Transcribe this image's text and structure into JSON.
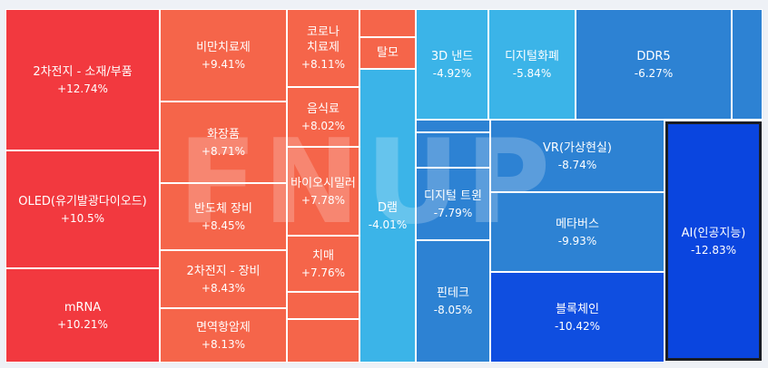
{
  "chart_data": {
    "type": "treemap",
    "colors": {
      "up_strong": "#f2393f",
      "up": "#f5654a",
      "down_light": "#3bb4e8",
      "down_mid": "#2d82d3",
      "down_strong": "#0f4ee0",
      "down_max": "#0a45df",
      "border": "#ffffff",
      "selected_border": "#1a1d24"
    },
    "items": [
      {
        "name": "2차전지 - 소재/부품",
        "change": "+12.74%",
        "value": 12.74
      },
      {
        "name": "OLED(유기발광다이오드)",
        "change": "+10.5%",
        "value": 10.5
      },
      {
        "name": "mRNA",
        "change": "+10.21%",
        "value": 10.21
      },
      {
        "name": "비만치료제",
        "change": "+9.41%",
        "value": 9.41
      },
      {
        "name": "화장품",
        "change": "+8.71%",
        "value": 8.71
      },
      {
        "name": "반도체 장비",
        "change": "+8.45%",
        "value": 8.45
      },
      {
        "name": "2차전지 - 장비",
        "change": "+8.43%",
        "value": 8.43
      },
      {
        "name": "면역항암제",
        "change": "+8.13%",
        "value": 8.13
      },
      {
        "name": "코로나 치료제",
        "change": "+8.11%",
        "value": 8.11
      },
      {
        "name": "음식료",
        "change": "+8.02%",
        "value": 8.02
      },
      {
        "name": "바이오시밀러",
        "change": "+7.78%",
        "value": 7.78
      },
      {
        "name": "치매",
        "change": "+7.76%",
        "value": 7.76
      },
      {
        "name": "탈모",
        "change": "",
        "value": null
      },
      {
        "name": "D램",
        "change": "-4.01%",
        "value": -4.01
      },
      {
        "name": "3D 낸드",
        "change": "-4.92%",
        "value": -4.92
      },
      {
        "name": "디지털화폐",
        "change": "-5.84%",
        "value": -5.84
      },
      {
        "name": "DDR5",
        "change": "-6.27%",
        "value": -6.27
      },
      {
        "name": "디지털 트윈",
        "change": "-7.79%",
        "value": -7.79
      },
      {
        "name": "VR(가상현실)",
        "change": "-8.74%",
        "value": -8.74
      },
      {
        "name": "메타버스",
        "change": "-9.93%",
        "value": -9.93
      },
      {
        "name": "핀테크",
        "change": "-8.05%",
        "value": -8.05
      },
      {
        "name": "블록체인",
        "change": "-10.42%",
        "value": -10.42
      },
      {
        "name": "AI(인공지능)",
        "change": "-12.83%",
        "value": -12.83
      }
    ],
    "watermark": "FNUP"
  }
}
